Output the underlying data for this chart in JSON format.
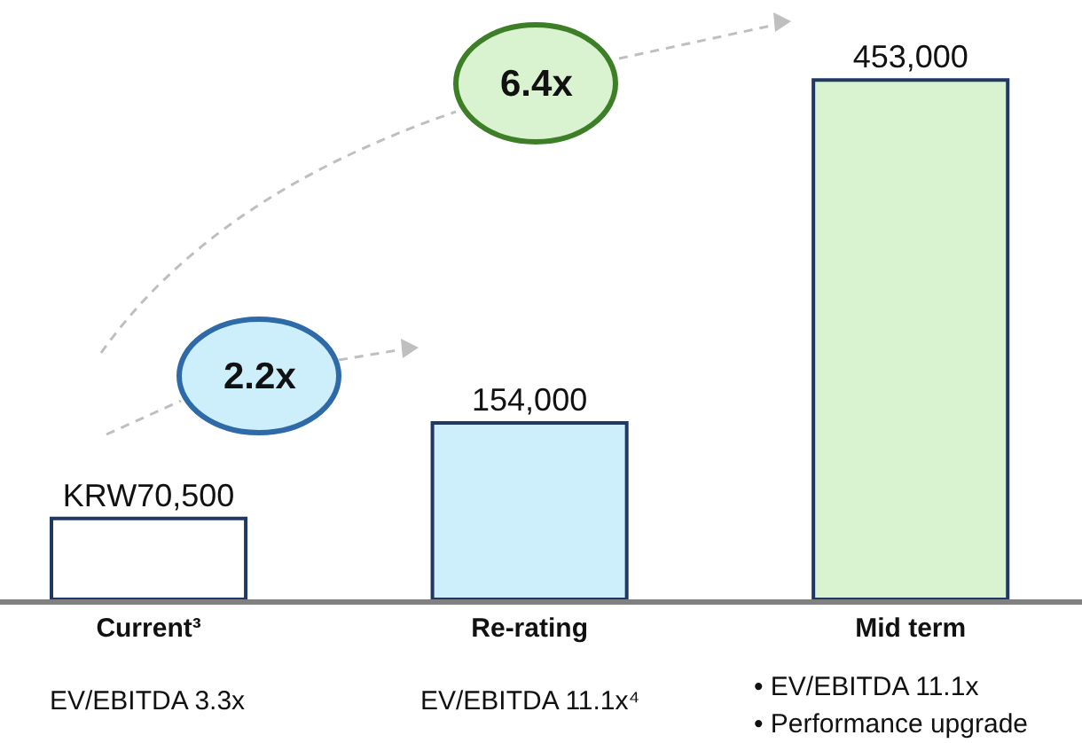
{
  "chart_data": {
    "type": "bar",
    "categories": [
      "Current³",
      "Re-rating",
      "Mid term"
    ],
    "values": [
      70500,
      154000,
      453000
    ],
    "value_labels": [
      "KRW70,500",
      "154,000",
      "453,000"
    ],
    "colors": [
      "#ffffff",
      "#cdeefb",
      "#d9f2d0"
    ],
    "annotations": [
      "2.2x",
      "6.4x",
      "EV/EBITDA 3.3x",
      "EV/EBITDA 11.1x⁴",
      "• EV/EBITDA 11.1x",
      "• Performance upgrade"
    ],
    "grid": false,
    "legend": false
  }
}
